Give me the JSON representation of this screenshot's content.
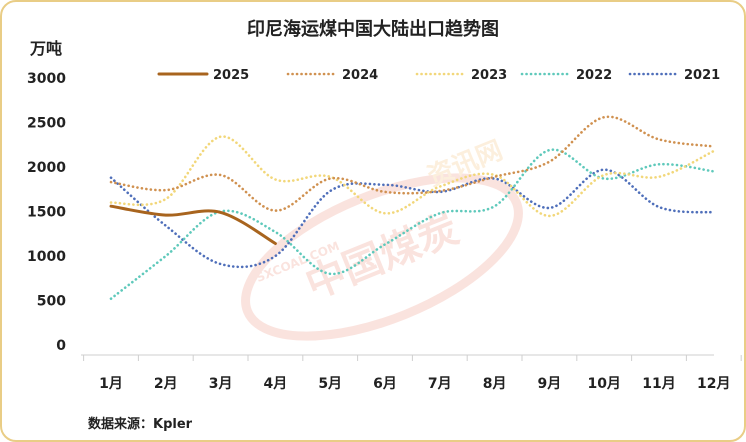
{
  "chart_data": {
    "type": "line",
    "title": "印尼海运煤中国大陆出口趋势图",
    "ylabel": "万吨",
    "source": "数据来源：Kpler",
    "ylim": [
      0,
      3000
    ],
    "yticks": [
      "0",
      "500",
      "1000",
      "1500",
      "2000",
      "2500",
      "3000"
    ],
    "categories": [
      "1月",
      "2月",
      "3月",
      "4月",
      "5月",
      "6月",
      "7月",
      "8月",
      "9月",
      "10月",
      "11月",
      "12月"
    ],
    "grid": false,
    "legend_position": "top",
    "series": [
      {
        "name": "2025",
        "color": "#a8641e",
        "style": "solid",
        "values": [
          1560,
          1460,
          1490,
          1140,
          null,
          null,
          null,
          null,
          null,
          null,
          null,
          null
        ]
      },
      {
        "name": "2024",
        "color": "#d09150",
        "style": "dotted",
        "values": [
          1830,
          1740,
          1910,
          1510,
          1870,
          1720,
          1730,
          1890,
          2060,
          2560,
          2310,
          2230
        ]
      },
      {
        "name": "2023",
        "color": "#f2d77a",
        "style": "dotted",
        "values": [
          1600,
          1640,
          2340,
          1860,
          1890,
          1480,
          1780,
          1910,
          1450,
          1910,
          1890,
          2180
        ]
      },
      {
        "name": "2022",
        "color": "#5fc9bb",
        "style": "dotted",
        "values": [
          520,
          1000,
          1500,
          1270,
          800,
          1130,
          1480,
          1560,
          2190,
          1870,
          2030,
          1950
        ]
      },
      {
        "name": "2021",
        "color": "#4f6fba",
        "style": "dotted",
        "values": [
          1880,
          1340,
          910,
          1000,
          1730,
          1800,
          1720,
          1870,
          1540,
          1970,
          1550,
          1490
        ]
      }
    ]
  },
  "watermark": {
    "text": "中国煤炭",
    "small_text": "SXCOAL.COM",
    "accent_text": "资讯网"
  }
}
